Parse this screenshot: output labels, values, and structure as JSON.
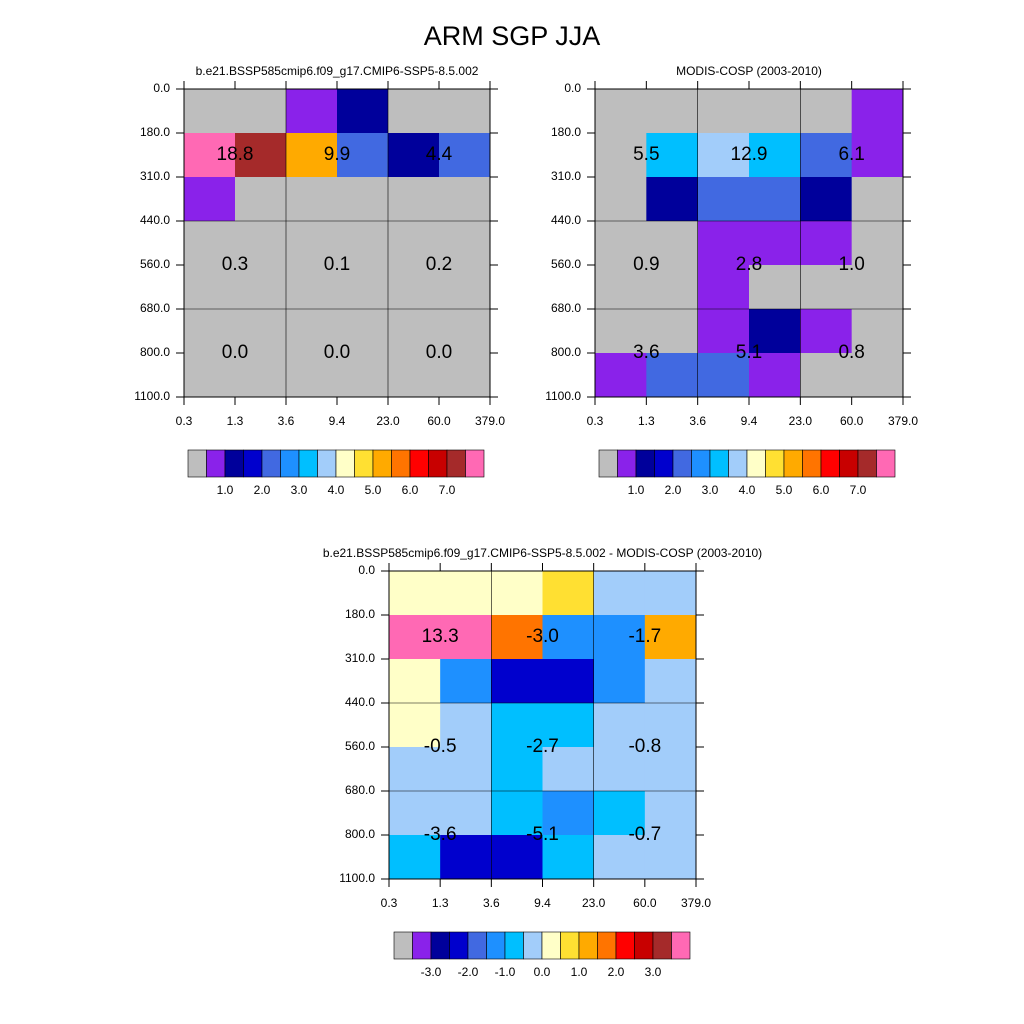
{
  "title": "ARM SGP JJA",
  "colors": {
    "gray": "#BEBEBE",
    "purple": "#8A22EA",
    "darkNavy": "#00009B",
    "blue": "#0000CD",
    "royalBlue": "#4169E1",
    "dodgerBlue": "#1E90FF",
    "deepSky": "#00BFFF",
    "lightSky": "#A2CDFA",
    "lightYellow": "#FFFFC8",
    "gold": "#FFE032",
    "orangeLight": "#FFAA00",
    "darkOrange": "#FF7400",
    "red": "#FF0000",
    "darkRed": "#C80000",
    "brown": "#A52A2A",
    "pink": "#FF69B4"
  },
  "chart_data": [
    {
      "id": "model",
      "type": "heatmap",
      "title": "b.e21.BSSP585cmip6.f09_g17.CMIP6-SSP5-8.5.002",
      "x_ticks": [
        "0.3",
        "1.3",
        "3.6",
        "9.4",
        "23.0",
        "60.0",
        "379.0"
      ],
      "y_ticks": [
        "0.0",
        "180.0",
        "310.0",
        "440.0",
        "560.0",
        "680.0",
        "800.0",
        "1100.0"
      ],
      "cells": [
        [
          "gray",
          "gray",
          "purple",
          "darkNavy",
          "gray",
          "gray"
        ],
        [
          "pink",
          "brown",
          "orangeLight",
          "royalBlue",
          "darkNavy",
          "royalBlue"
        ],
        [
          "purple",
          "gray",
          "gray",
          "gray",
          "gray",
          "gray"
        ],
        [
          "gray",
          "gray",
          "gray",
          "gray",
          "gray",
          "gray"
        ],
        [
          "gray",
          "gray",
          "gray",
          "gray",
          "gray",
          "gray"
        ],
        [
          "gray",
          "gray",
          "gray",
          "gray",
          "gray",
          "gray"
        ],
        [
          "gray",
          "gray",
          "gray",
          "gray",
          "gray",
          "gray"
        ]
      ],
      "annotations": [
        {
          "row_group": 0,
          "col_group": 0,
          "label": "18.8"
        },
        {
          "row_group": 0,
          "col_group": 1,
          "label": "9.9"
        },
        {
          "row_group": 0,
          "col_group": 2,
          "label": "4.4"
        },
        {
          "row_group": 1,
          "col_group": 0,
          "label": "0.3"
        },
        {
          "row_group": 1,
          "col_group": 1,
          "label": "0.1"
        },
        {
          "row_group": 1,
          "col_group": 2,
          "label": "0.2"
        },
        {
          "row_group": 2,
          "col_group": 0,
          "label": "0.0"
        },
        {
          "row_group": 2,
          "col_group": 1,
          "label": "0.0"
        },
        {
          "row_group": 2,
          "col_group": 2,
          "label": "0.0"
        }
      ],
      "colorbar": {
        "colors": [
          "gray",
          "purple",
          "darkNavy",
          "blue",
          "royalBlue",
          "dodgerBlue",
          "deepSky",
          "lightSky",
          "lightYellow",
          "gold",
          "orangeLight",
          "darkOrange",
          "red",
          "darkRed",
          "brown",
          "pink"
        ],
        "labels": [
          "1.0",
          "2.0",
          "3.0",
          "4.0",
          "5.0",
          "6.0",
          "7.0"
        ],
        "label_after_box": [
          2,
          4,
          6,
          8,
          10,
          12,
          14
        ]
      }
    },
    {
      "id": "obs",
      "type": "heatmap",
      "title": "MODIS-COSP (2003-2010)",
      "x_ticks": [
        "0.3",
        "1.3",
        "3.6",
        "9.4",
        "23.0",
        "60.0",
        "379.0"
      ],
      "y_ticks": [
        "0.0",
        "180.0",
        "310.0",
        "440.0",
        "560.0",
        "680.0",
        "800.0",
        "1100.0"
      ],
      "cells": [
        [
          "gray",
          "gray",
          "gray",
          "gray",
          "gray",
          "purple"
        ],
        [
          "gray",
          "deepSky",
          "lightSky",
          "deepSky",
          "royalBlue",
          "purple"
        ],
        [
          "gray",
          "darkNavy",
          "royalBlue",
          "royalBlue",
          "darkNavy",
          "gray"
        ],
        [
          "gray",
          "gray",
          "purple",
          "purple",
          "purple",
          "gray"
        ],
        [
          "gray",
          "gray",
          "purple",
          "gray",
          "gray",
          "gray"
        ],
        [
          "gray",
          "gray",
          "purple",
          "darkNavy",
          "purple",
          "gray"
        ],
        [
          "purple",
          "royalBlue",
          "royalBlue",
          "purple",
          "gray",
          "gray"
        ]
      ],
      "annotations": [
        {
          "row_group": 0,
          "col_group": 0,
          "label": "5.5"
        },
        {
          "row_group": 0,
          "col_group": 1,
          "label": "12.9"
        },
        {
          "row_group": 0,
          "col_group": 2,
          "label": "6.1"
        },
        {
          "row_group": 1,
          "col_group": 0,
          "label": "0.9"
        },
        {
          "row_group": 1,
          "col_group": 1,
          "label": "2.8"
        },
        {
          "row_group": 1,
          "col_group": 2,
          "label": "1.0"
        },
        {
          "row_group": 2,
          "col_group": 0,
          "label": "3.6"
        },
        {
          "row_group": 2,
          "col_group": 1,
          "label": "5.1"
        },
        {
          "row_group": 2,
          "col_group": 2,
          "label": "0.8"
        }
      ],
      "colorbar": {
        "colors": [
          "gray",
          "purple",
          "darkNavy",
          "blue",
          "royalBlue",
          "dodgerBlue",
          "deepSky",
          "lightSky",
          "lightYellow",
          "gold",
          "orangeLight",
          "darkOrange",
          "red",
          "darkRed",
          "brown",
          "pink"
        ],
        "labels": [
          "1.0",
          "2.0",
          "3.0",
          "4.0",
          "5.0",
          "6.0",
          "7.0"
        ],
        "label_after_box": [
          2,
          4,
          6,
          8,
          10,
          12,
          14
        ]
      }
    },
    {
      "id": "diff",
      "type": "heatmap",
      "title": "b.e21.BSSP585cmip6.f09_g17.CMIP6-SSP5-8.5.002 - MODIS-COSP (2003-2010)",
      "x_ticks": [
        "0.3",
        "1.3",
        "3.6",
        "9.4",
        "23.0",
        "60.0",
        "379.0"
      ],
      "y_ticks": [
        "0.0",
        "180.0",
        "310.0",
        "440.0",
        "560.0",
        "680.0",
        "800.0",
        "1100.0"
      ],
      "cells": [
        [
          "lightYellow",
          "lightYellow",
          "lightYellow",
          "gold",
          "lightSky",
          "lightSky"
        ],
        [
          "pink",
          "pink",
          "darkOrange",
          "dodgerBlue",
          "dodgerBlue",
          "orangeLight"
        ],
        [
          "lightYellow",
          "dodgerBlue",
          "blue",
          "blue",
          "dodgerBlue",
          "lightSky"
        ],
        [
          "lightYellow",
          "lightSky",
          "deepSky",
          "deepSky",
          "lightSky",
          "lightSky"
        ],
        [
          "lightSky",
          "lightSky",
          "deepSky",
          "lightSky",
          "lightSky",
          "lightSky"
        ],
        [
          "lightSky",
          "lightSky",
          "deepSky",
          "dodgerBlue",
          "deepSky",
          "lightSky"
        ],
        [
          "deepSky",
          "blue",
          "blue",
          "deepSky",
          "lightSky",
          "lightSky"
        ]
      ],
      "annotations": [
        {
          "row_group": 0,
          "col_group": 0,
          "label": "13.3"
        },
        {
          "row_group": 0,
          "col_group": 1,
          "label": "-3.0"
        },
        {
          "row_group": 0,
          "col_group": 2,
          "label": "-1.7"
        },
        {
          "row_group": 1,
          "col_group": 0,
          "label": "-0.5"
        },
        {
          "row_group": 1,
          "col_group": 1,
          "label": "-2.7"
        },
        {
          "row_group": 1,
          "col_group": 2,
          "label": "-0.8"
        },
        {
          "row_group": 2,
          "col_group": 0,
          "label": "-3.6"
        },
        {
          "row_group": 2,
          "col_group": 1,
          "label": "-5.1"
        },
        {
          "row_group": 2,
          "col_group": 2,
          "label": "-0.7"
        }
      ],
      "colorbar": {
        "colors": [
          "gray",
          "purple",
          "darkNavy",
          "blue",
          "royalBlue",
          "dodgerBlue",
          "deepSky",
          "lightSky",
          "lightYellow",
          "gold",
          "orangeLight",
          "darkOrange",
          "red",
          "darkRed",
          "brown",
          "pink"
        ],
        "labels": [
          "-3.0",
          "-2.0",
          "-1.0",
          "0.0",
          "1.0",
          "2.0",
          "3.0"
        ],
        "label_after_box": [
          2,
          4,
          6,
          8,
          10,
          12,
          14
        ]
      }
    }
  ]
}
